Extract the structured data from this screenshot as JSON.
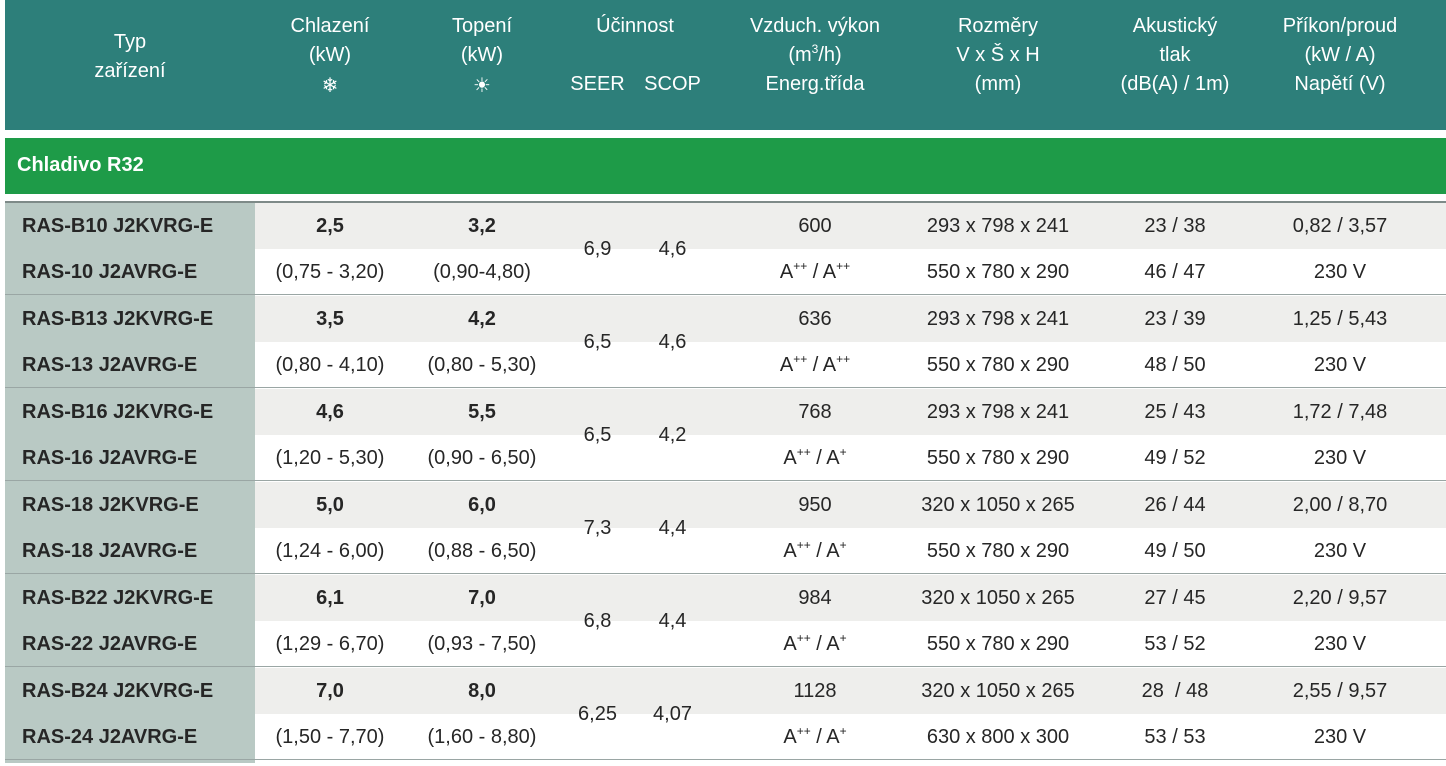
{
  "header": {
    "type": [
      "Typ",
      "zařízení"
    ],
    "cooling": [
      "Chlazení",
      "(kW)"
    ],
    "cooling_icon": "❄",
    "heating": [
      "Topení",
      "(kW)"
    ],
    "heating_icon": "☀",
    "efficiency": "Účinnost",
    "seer": "SEER",
    "scop": "SCOP",
    "air_1": "Vzduch. výkon",
    "air_2_base": "(m",
    "air_2_sup": "3",
    "air_2_end": "/h)",
    "air_3": "Energ.třída",
    "dims": [
      "Rozměry",
      "V x Š x H",
      "(mm)"
    ],
    "acoustic": [
      "Akustický",
      "tlak",
      "dB(A) / 1m)"
    ],
    "power": [
      "Příkon/proud",
      "(kW / A)",
      "Napětí (V)"
    ]
  },
  "section_label": "Chladivo R32",
  "rows": [
    {
      "type1": "RAS-B10 J2KVRG-E",
      "type2": "RAS-10 J2AVRG-E",
      "cool": "2,5",
      "cool_range": "(0,75 - 3,20)",
      "heat": "3,2",
      "heat_range": "(0,90-4,80)",
      "seer": "6,9",
      "scop": "4,6",
      "air": "600",
      "class_a": "A",
      "class_a_sup": "++",
      "class_sep": " / ",
      "class_b": "A",
      "class_b_sup": "++",
      "dim1": "293 x 798 x 241",
      "dim2": "550 x 780 x 290",
      "ac1": "23 / 38",
      "ac2": "46 / 47",
      "pw1": "0,82 / 3,57",
      "pw2": "230 V"
    },
    {
      "type1": "RAS-B13 J2KVRG-E",
      "type2": "RAS-13 J2AVRG-E",
      "cool": "3,5",
      "cool_range": "(0,80 - 4,10)",
      "heat": "4,2",
      "heat_range": "(0,80 - 5,30)",
      "seer": "6,5",
      "scop": "4,6",
      "air": "636",
      "class_a": "A",
      "class_a_sup": "++",
      "class_sep": " / ",
      "class_b": "A",
      "class_b_sup": "++",
      "dim1": "293 x 798 x 241",
      "dim2": "550 x 780 x 290",
      "ac1": "23 / 39",
      "ac2": "48 / 50",
      "pw1": "1,25 / 5,43",
      "pw2": "230 V"
    },
    {
      "type1": "RAS-B16 J2KVRG-E",
      "type2": "RAS-16 J2AVRG-E",
      "cool": "4,6",
      "cool_range": "(1,20 - 5,30)",
      "heat": "5,5",
      "heat_range": "(0,90 - 6,50)",
      "seer": "6,5",
      "scop": "4,2",
      "air": "768",
      "class_a": "A",
      "class_a_sup": "++",
      "class_sep": " / ",
      "class_b": "A",
      "class_b_sup": "+",
      "dim1": "293 x 798 x 241",
      "dim2": "550 x 780 x 290",
      "ac1": "25 / 43",
      "ac2": "49 / 52",
      "pw1": "1,72 / 7,48",
      "pw2": "230 V"
    },
    {
      "type1": "RAS-18 J2KVRG-E",
      "type2": "RAS-18 J2AVRG-E",
      "cool": "5,0",
      "cool_range": "(1,24 - 6,00)",
      "heat": "6,0",
      "heat_range": "(0,88 - 6,50)",
      "seer": "7,3",
      "scop": "4,4",
      "air": "950",
      "class_a": "A",
      "class_a_sup": "++",
      "class_sep": " / ",
      "class_b": "A",
      "class_b_sup": "+",
      "dim1": "320 x 1050 x 265",
      "dim2": "550 x 780 x 290",
      "ac1": "26 / 44",
      "ac2": "49 / 50",
      "pw1": "2,00 / 8,70",
      "pw2": "230 V"
    },
    {
      "type1": "RAS-B22 J2KVRG-E",
      "type2": "RAS-22 J2AVRG-E",
      "cool": "6,1",
      "cool_range": "(1,29 - 6,70)",
      "heat": "7,0",
      "heat_range": "(0,93 - 7,50)",
      "seer": "6,8",
      "scop": "4,4",
      "air": "984",
      "class_a": "A",
      "class_a_sup": "++",
      "class_sep": " / ",
      "class_b": "A",
      "class_b_sup": "+",
      "dim1": "320 x 1050 x 265",
      "dim2": "550 x 780 x 290",
      "ac1": "27 / 45",
      "ac2": "53 / 52",
      "pw1": "2,20 / 9,57",
      "pw2": "230 V"
    },
    {
      "type1": "RAS-B24 J2KVRG-E",
      "type2": "RAS-24 J2AVRG-E",
      "cool": "7,0",
      "cool_range": "(1,50 - 7,70)",
      "heat": "8,0",
      "heat_range": "(1,60 - 8,80)",
      "seer": "6,25",
      "scop": "4,07",
      "air": "1128",
      "class_a": "A",
      "class_a_sup": "++",
      "class_sep": " / ",
      "class_b": "A",
      "class_b_sup": "+",
      "dim1": "320 x 1050 x 265",
      "dim2": "630 x 800 x 300",
      "ac1": "28  / 48",
      "ac2": "53 / 53",
      "pw1": "2,55 / 9,57",
      "pw2": "230 V"
    }
  ]
}
